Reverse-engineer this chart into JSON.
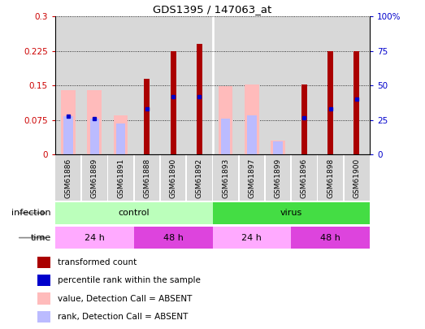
{
  "title": "GDS1395 / 147063_at",
  "samples": [
    "GSM61886",
    "GSM61889",
    "GSM61891",
    "GSM61888",
    "GSM61890",
    "GSM61892",
    "GSM61893",
    "GSM61897",
    "GSM61899",
    "GSM61896",
    "GSM61898",
    "GSM61900"
  ],
  "red_bars": [
    0,
    0,
    0,
    0.165,
    0.225,
    0.24,
    0,
    0,
    0,
    0.152,
    0.225,
    0.225
  ],
  "pink_bars": [
    0.14,
    0.14,
    0.085,
    0,
    0,
    0,
    0.148,
    0.152,
    0.03,
    0,
    0,
    0
  ],
  "blue_dots": [
    0.083,
    0.078,
    0,
    0.1,
    0.125,
    0.125,
    0,
    0,
    0,
    0.08,
    0.1,
    0.12
  ],
  "light_blue_bars": [
    0.083,
    0.078,
    0.068,
    0,
    0,
    0,
    0.078,
    0.085,
    0.028,
    0,
    0,
    0
  ],
  "ylim": [
    0,
    0.3
  ],
  "yticks": [
    0,
    0.075,
    0.15,
    0.225,
    0.3
  ],
  "ytick_labels_left": [
    "0",
    "0.075",
    "0.15",
    "0.225",
    "0.3"
  ],
  "ytick_labels_right": [
    "0",
    "25",
    "50",
    "75",
    "100%"
  ],
  "ylabel_left_color": "#cc0000",
  "ylabel_right_color": "#0000cc",
  "infection_groups": [
    {
      "label": "control",
      "start": 0,
      "end": 6,
      "color": "#bbffbb"
    },
    {
      "label": "virus",
      "start": 6,
      "end": 12,
      "color": "#44dd44"
    }
  ],
  "time_groups": [
    {
      "label": "24 h",
      "start": 0,
      "end": 3,
      "color": "#ffaaff"
    },
    {
      "label": "48 h",
      "start": 3,
      "end": 6,
      "color": "#dd44dd"
    },
    {
      "label": "24 h",
      "start": 6,
      "end": 9,
      "color": "#ffaaff"
    },
    {
      "label": "48 h",
      "start": 9,
      "end": 12,
      "color": "#dd44dd"
    }
  ],
  "col_bg_color": "#d8d8d8",
  "red_color": "#aa0000",
  "pink_color": "#ffbbbb",
  "blue_color": "#0000cc",
  "light_blue_color": "#bbbbff",
  "legend_items": [
    {
      "color": "#aa0000",
      "label": "transformed count"
    },
    {
      "color": "#0000cc",
      "label": "percentile rank within the sample"
    },
    {
      "color": "#ffbbbb",
      "label": "value, Detection Call = ABSENT"
    },
    {
      "color": "#bbbbff",
      "label": "rank, Detection Call = ABSENT"
    }
  ]
}
